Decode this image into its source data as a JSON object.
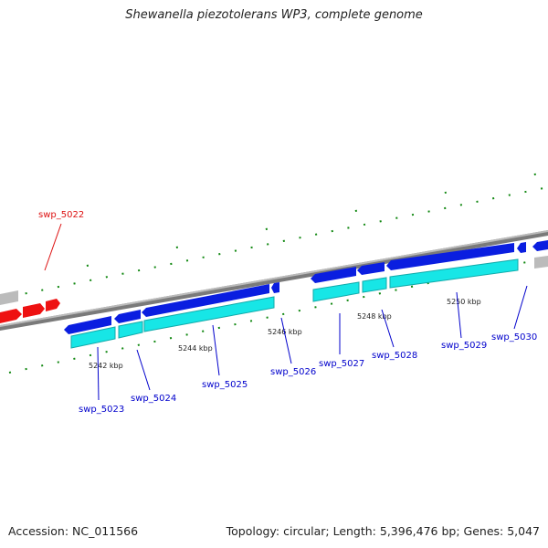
{
  "title": "Shewanella piezotolerans WP3, complete genome",
  "footer": {
    "accession": "Accession: NC_011566",
    "summary": "Topology: circular; Length: 5,396,476 bp; Genes: 5,047"
  },
  "colors": {
    "forward_gene": "#0a1ee0",
    "forward_cds": "#17e6e6",
    "highlight_gene": "#ee1111",
    "other_gene": "#bbbbbb",
    "backbone": "#777777",
    "tick": "#118811",
    "label_blue": "#0000cc",
    "label_red": "#dd1111"
  },
  "ticks": [
    {
      "label": "5242 kbp"
    },
    {
      "label": "5244 kbp"
    },
    {
      "label": "5246 kbp"
    },
    {
      "label": "5248 kbp"
    },
    {
      "label": "5250 kbp"
    }
  ],
  "genes": [
    {
      "name": "swp_5022"
    },
    {
      "name": "swp_5023"
    },
    {
      "name": "swp_5024"
    },
    {
      "name": "swp_5025"
    },
    {
      "name": "swp_5026"
    },
    {
      "name": "swp_5027"
    },
    {
      "name": "swp_5028"
    },
    {
      "name": "swp_5029"
    },
    {
      "name": "swp_5030"
    }
  ]
}
